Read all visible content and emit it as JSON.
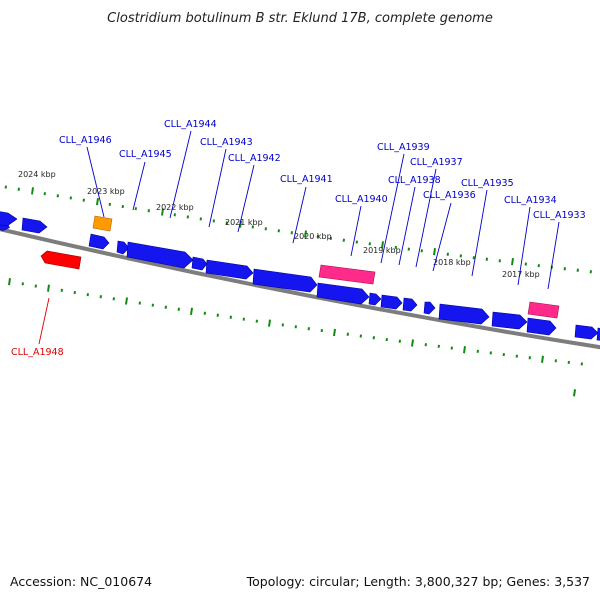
{
  "title": "Clostridium botulinum B str. Eklund 17B, complete genome",
  "footer": {
    "accession": "Accession: NC_010674",
    "summary": "Topology: circular; Length: 3,800,327 bp; Genes: 3,537"
  },
  "colors": {
    "cds": "#1515f0",
    "rna": "#ff9a00",
    "rna_2": "#ff2a8a",
    "pseudo": "#ff0000",
    "backbone": "#808080",
    "ticks": "#138a13",
    "label_forward": "#0000cc",
    "label_reverse": "#dd0000"
  },
  "scale_labels": [
    "2024 kbp",
    "2023 kbp",
    "2022 kbp",
    "2021 kbp",
    "2020 kbp",
    "2019 kbp",
    "2018 kbp",
    "2017 kbp"
  ],
  "gene_labels": [
    "CLL_A1946",
    "CLL_A1945",
    "CLL_A1944",
    "CLL_A1943",
    "CLL_A1942",
    "CLL_A1941",
    "CLL_A1940",
    "CLL_A1939",
    "CLL_A1938",
    "CLL_A1937",
    "CLL_A1936",
    "CLL_A1935",
    "CLL_A1934",
    "CLL_A1933",
    "CLL_A1948"
  ]
}
